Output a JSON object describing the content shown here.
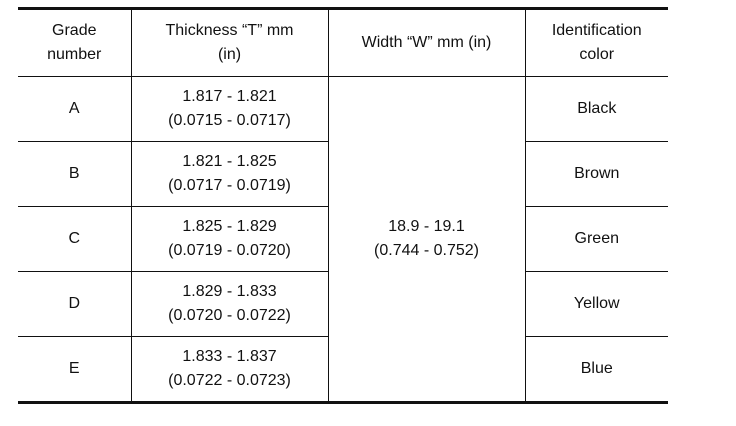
{
  "table": {
    "header": [
      "Grade\nnumber",
      "Thickness “T” mm\n(in)",
      "Width “W” mm (in)",
      "Identification\ncolor"
    ],
    "width": {
      "mm": "18.9 - 19.1",
      "in": "(0.744 - 0.752)"
    },
    "rows": [
      {
        "grade": "A",
        "mm": "1.817 - 1.821",
        "in": "(0.0715 - 0.0717)",
        "color": "Black"
      },
      {
        "grade": "B",
        "mm": "1.821 - 1.825",
        "in": "(0.0717 - 0.0719)",
        "color": "Brown"
      },
      {
        "grade": "C",
        "mm": "1.825 - 1.829",
        "in": "(0.0719 - 0.0720)",
        "color": "Green"
      },
      {
        "grade": "D",
        "mm": "1.829 - 1.833",
        "in": "(0.0720 - 0.0722)",
        "color": "Yellow"
      },
      {
        "grade": "E",
        "mm": "1.833 - 1.837",
        "in": "(0.0722 - 0.0723)",
        "color": "Blue"
      }
    ]
  }
}
